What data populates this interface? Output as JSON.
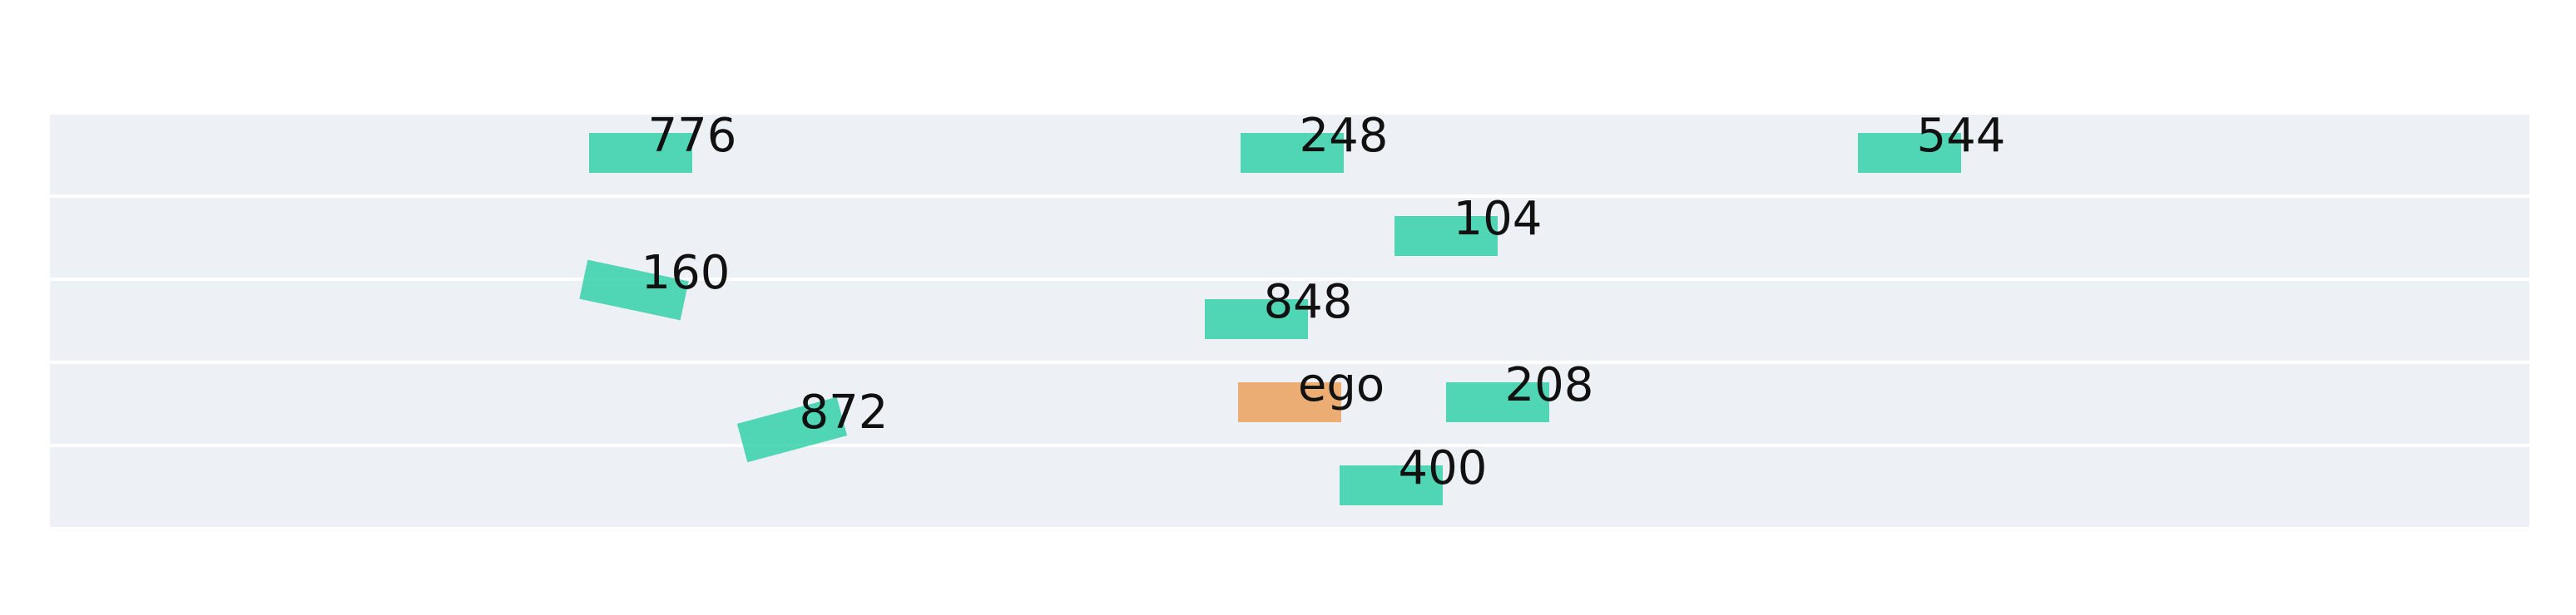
{
  "colors": {
    "background": "#ffffff",
    "lane_fill": "#edf0f5",
    "lane_divider": "#ffffff",
    "vehicle": "#34d1a8",
    "ego": "#eba15e",
    "label_text": "#111111"
  },
  "lanes": 5,
  "vehicles": [
    {
      "label": "776",
      "type": "vehicle",
      "lane": 1,
      "heading_deg": 0
    },
    {
      "label": "248",
      "type": "vehicle",
      "lane": 1,
      "heading_deg": 0
    },
    {
      "label": "544",
      "type": "vehicle",
      "lane": 1,
      "heading_deg": 0
    },
    {
      "label": "104",
      "type": "vehicle",
      "lane": 2,
      "heading_deg": 0
    },
    {
      "label": "160",
      "type": "vehicle",
      "lane": 2,
      "heading_deg": 12
    },
    {
      "label": "848",
      "type": "vehicle",
      "lane": 3,
      "heading_deg": 0
    },
    {
      "label": "ego",
      "type": "ego",
      "lane": 4,
      "heading_deg": 0
    },
    {
      "label": "208",
      "type": "vehicle",
      "lane": 4,
      "heading_deg": 0
    },
    {
      "label": "872",
      "type": "vehicle",
      "lane": 4,
      "heading_deg": -15
    },
    {
      "label": "400",
      "type": "vehicle",
      "lane": 5,
      "heading_deg": 0
    }
  ]
}
